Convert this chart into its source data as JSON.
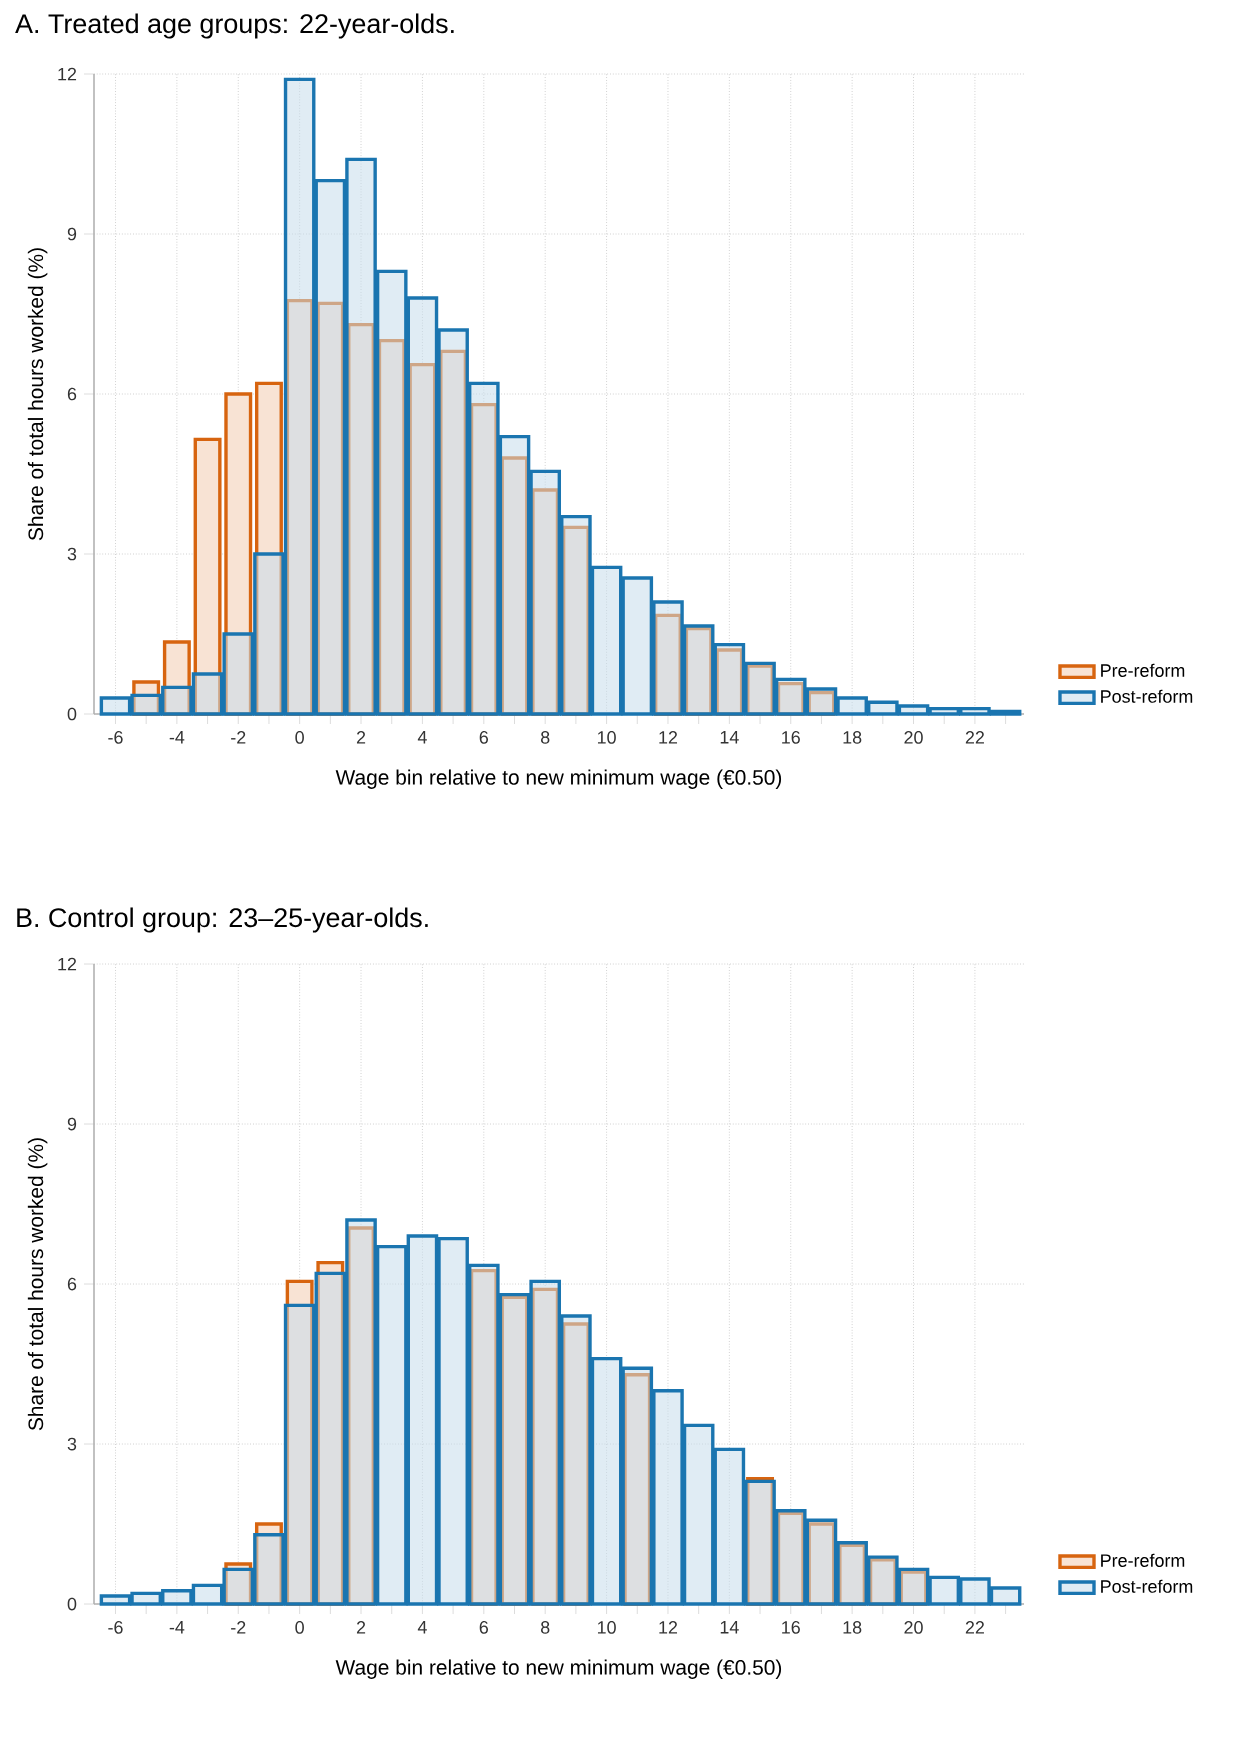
{
  "chart_data": [
    {
      "type": "bar",
      "title": "A.  Treated age groups: 22-year-olds.",
      "xlabel": "Wage bin relative to new minimum wage (€0.50)",
      "ylabel": "Share of total hours worked (%)",
      "x": [
        -6,
        -5,
        -4,
        -3,
        -2,
        -1,
        0,
        1,
        2,
        3,
        4,
        5,
        6,
        7,
        8,
        9,
        10,
        11,
        12,
        13,
        14,
        15,
        16,
        17,
        18,
        19,
        20,
        21,
        22,
        23
      ],
      "series": [
        {
          "name": "Pre-reform",
          "color": "#d7640f",
          "values": [
            null,
            0.6,
            1.35,
            5.15,
            6.0,
            6.2,
            7.75,
            7.7,
            7.3,
            7.0,
            6.55,
            6.8,
            5.8,
            4.8,
            4.2,
            3.5,
            null,
            null,
            1.85,
            1.6,
            1.2,
            0.9,
            0.57,
            0.4,
            null,
            null,
            null,
            null,
            null,
            null
          ]
        },
        {
          "name": "Post-reform",
          "color": "#1a75b0",
          "values": [
            0.3,
            0.35,
            0.5,
            0.75,
            1.5,
            3.0,
            11.9,
            10.0,
            10.4,
            8.3,
            7.8,
            7.2,
            6.2,
            5.2,
            4.55,
            3.7,
            2.75,
            2.55,
            2.1,
            1.65,
            1.3,
            0.95,
            0.65,
            0.47,
            0.3,
            0.22,
            0.15,
            0.1,
            0.1,
            0.05
          ]
        }
      ],
      "xlim": [
        -6.7,
        23.6
      ],
      "ylim": [
        0,
        12
      ],
      "yticks": [
        0,
        3,
        6,
        9,
        12
      ],
      "xticks": [
        -6,
        {
          "value": -5,
          "label": null
        },
        -4,
        {
          "value": -3,
          "label": null
        },
        -2,
        {
          "value": -1,
          "label": null
        },
        0,
        {
          "value": 1,
          "label": null
        },
        2,
        {
          "value": 3,
          "label": null
        },
        4,
        {
          "value": 5,
          "label": null
        },
        6,
        {
          "value": 7,
          "label": null
        },
        8,
        {
          "value": 9,
          "label": null
        },
        10,
        {
          "value": 11,
          "label": null
        },
        12,
        {
          "value": 13,
          "label": null
        },
        14,
        {
          "value": 15,
          "label": null
        },
        16,
        {
          "value": 17,
          "label": null
        },
        18,
        {
          "value": 19,
          "label": null
        },
        20,
        {
          "value": 21,
          "label": null
        },
        22,
        {
          "value": 23,
          "label": null
        }
      ],
      "grid": true,
      "legend": "bottom right"
    },
    {
      "type": "bar",
      "title": "B.  Control group: 23–25-year-olds.",
      "xlabel": "Wage bin relative to new minimum wage (€0.50)",
      "ylabel": "Share of total hours worked (%)",
      "x": [
        -6,
        -5,
        -4,
        -3,
        -2,
        -1,
        0,
        1,
        2,
        3,
        4,
        5,
        6,
        7,
        8,
        9,
        10,
        11,
        12,
        13,
        14,
        15,
        16,
        17,
        18,
        19,
        20,
        21,
        22,
        23
      ],
      "series": [
        {
          "name": "Pre-reform",
          "color": "#d7640f",
          "values": [
            null,
            null,
            null,
            null,
            0.75,
            1.5,
            6.05,
            6.4,
            7.05,
            null,
            null,
            null,
            6.25,
            5.75,
            5.9,
            5.25,
            null,
            4.3,
            null,
            null,
            null,
            2.35,
            1.7,
            1.5,
            1.1,
            0.83,
            0.6,
            null,
            null,
            null
          ]
        },
        {
          "name": "Post-reform",
          "color": "#1a75b0",
          "values": [
            0.15,
            0.2,
            0.25,
            0.35,
            0.65,
            1.3,
            5.6,
            6.2,
            7.2,
            6.7,
            6.9,
            6.85,
            6.35,
            5.8,
            6.05,
            5.4,
            4.6,
            4.42,
            4.0,
            3.35,
            2.9,
            2.3,
            1.75,
            1.57,
            1.15,
            0.88,
            0.65,
            0.5,
            0.47,
            0.3
          ]
        }
      ],
      "xlim": [
        -6.7,
        23.6
      ],
      "ylim": [
        0,
        12
      ],
      "yticks": [
        0,
        3,
        6,
        9,
        12
      ],
      "xticks": [
        -6,
        {
          "value": -5,
          "label": null
        },
        -4,
        {
          "value": -3,
          "label": null
        },
        -2,
        {
          "value": -1,
          "label": null
        },
        0,
        {
          "value": 1,
          "label": null
        },
        2,
        {
          "value": 3,
          "label": null
        },
        4,
        {
          "value": 5,
          "label": null
        },
        6,
        {
          "value": 7,
          "label": null
        },
        8,
        {
          "value": 9,
          "label": null
        },
        10,
        {
          "value": 11,
          "label": null
        },
        12,
        {
          "value": 13,
          "label": null
        },
        14,
        {
          "value": 15,
          "label": null
        },
        16,
        {
          "value": 17,
          "label": null
        },
        18,
        {
          "value": 19,
          "label": null
        },
        20,
        {
          "value": 21,
          "label": null
        },
        22,
        {
          "value": 23,
          "label": null
        }
      ],
      "grid": true,
      "legend": "bottom right"
    }
  ]
}
